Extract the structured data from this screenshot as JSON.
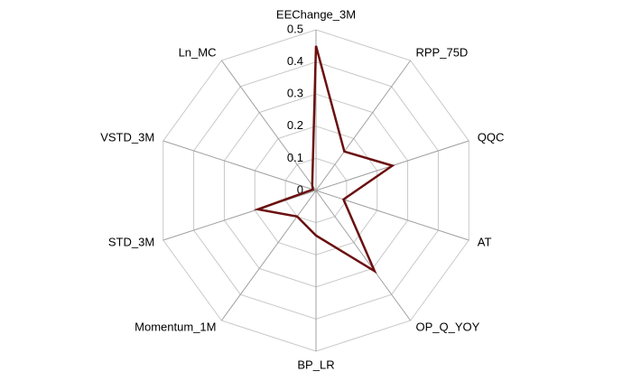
{
  "chart_data": {
    "type": "radar",
    "categories": [
      "EEChange_3M",
      "RPP_75D",
      "QQC",
      "AT",
      "OP_Q_YOY",
      "BP_LR",
      "Momentum_1M",
      "STD_3M",
      "VSTD_3M",
      "Ln_MC"
    ],
    "values": [
      0.45,
      0.15,
      0.25,
      0.09,
      0.31,
      0.14,
      0.1,
      0.19,
      0.01,
      0.02
    ],
    "color": "#6b0f0f",
    "rlim": [
      0,
      0.5
    ],
    "rticks": [
      0,
      0.1,
      0.2,
      0.3,
      0.4,
      0.5
    ],
    "grid": true
  }
}
